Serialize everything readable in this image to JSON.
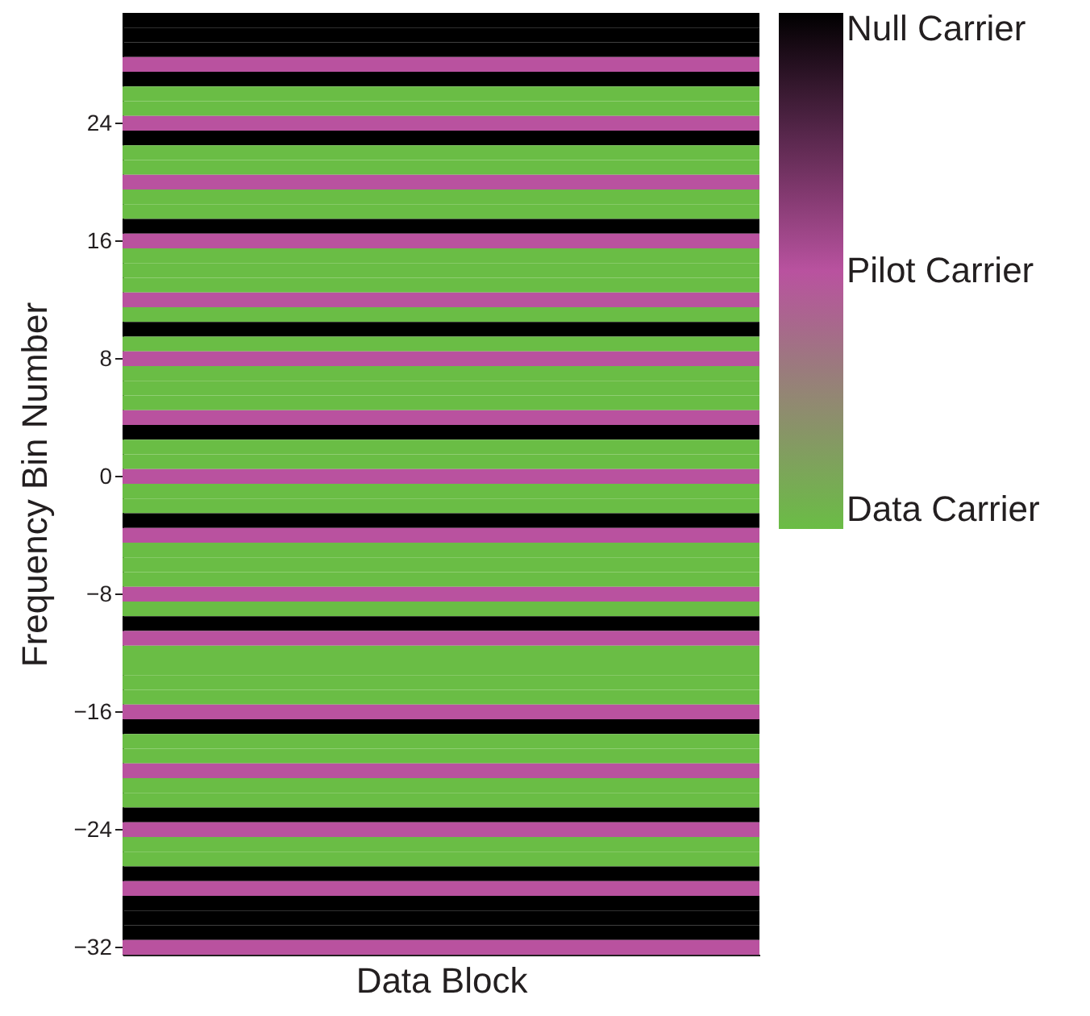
{
  "chart_data": {
    "type": "heatmap",
    "xlabel": "Data Block",
    "ylabel": "Frequency Bin Number",
    "categories": [
      null
    ],
    "ylim": [
      -32.5,
      31.5
    ],
    "yticks": [
      -32,
      -24,
      -16,
      -8,
      0,
      8,
      16,
      24
    ],
    "tick_labels": "y",
    "clim": [
      0,
      2
    ],
    "cticks": [
      {
        "value": 0,
        "label": "Data Carrier"
      },
      {
        "value": 1,
        "label": "Pilot Carrier"
      },
      {
        "value": 2,
        "label": "Null Carrier"
      }
    ],
    "colors": [
      "#6abd45",
      "#b9529f",
      "#000000"
    ],
    "cells": [
      [
        2
      ],
      [
        2
      ],
      [
        2
      ],
      [
        1
      ],
      [
        2
      ],
      [
        0
      ],
      [
        0
      ],
      [
        1
      ],
      [
        2
      ],
      [
        0
      ],
      [
        0
      ],
      [
        1
      ],
      [
        0
      ],
      [
        0
      ],
      [
        2
      ],
      [
        1
      ],
      [
        0
      ],
      [
        0
      ],
      [
        0
      ],
      [
        1
      ],
      [
        0
      ],
      [
        2
      ],
      [
        0
      ],
      [
        1
      ],
      [
        0
      ],
      [
        0
      ],
      [
        0
      ],
      [
        1
      ],
      [
        2
      ],
      [
        0
      ],
      [
        0
      ],
      [
        1
      ],
      [
        0
      ],
      [
        0
      ],
      [
        2
      ],
      [
        1
      ],
      [
        0
      ],
      [
        0
      ],
      [
        0
      ],
      [
        1
      ],
      [
        0
      ],
      [
        2
      ],
      [
        1
      ],
      [
        0
      ],
      [
        0
      ],
      [
        0
      ],
      [
        0
      ],
      [
        1
      ],
      [
        2
      ],
      [
        0
      ],
      [
        0
      ],
      [
        1
      ],
      [
        0
      ],
      [
        0
      ],
      [
        2
      ],
      [
        1
      ],
      [
        0
      ],
      [
        0
      ],
      [
        2
      ],
      [
        1
      ],
      [
        2
      ],
      [
        2
      ],
      [
        2
      ],
      [
        1
      ]
    ]
  }
}
